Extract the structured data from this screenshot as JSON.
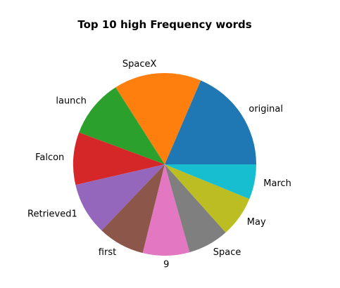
{
  "chart_data": {
    "type": "pie",
    "title": "Top 10 high Frequency words",
    "slices": [
      {
        "label": "original",
        "value": 18,
        "color": "#1f77b4"
      },
      {
        "label": "SpaceX",
        "value": 15,
        "color": "#ff7f0e"
      },
      {
        "label": "launch",
        "value": 10,
        "color": "#2ca02c"
      },
      {
        "label": "Falcon",
        "value": 9,
        "color": "#d62728"
      },
      {
        "label": "Retrieved1",
        "value": 9,
        "color": "#9467bd"
      },
      {
        "label": "first",
        "value": 8,
        "color": "#8c564b"
      },
      {
        "label": "9",
        "value": 8,
        "color": "#e377c2"
      },
      {
        "label": "Space",
        "value": 7,
        "color": "#7f7f7f"
      },
      {
        "label": "May",
        "value": 7,
        "color": "#bcbd22"
      },
      {
        "label": "March",
        "value": 6,
        "color": "#17becf"
      }
    ],
    "start_angle_deg": 0,
    "direction": "counterclockwise",
    "legend": "none"
  }
}
